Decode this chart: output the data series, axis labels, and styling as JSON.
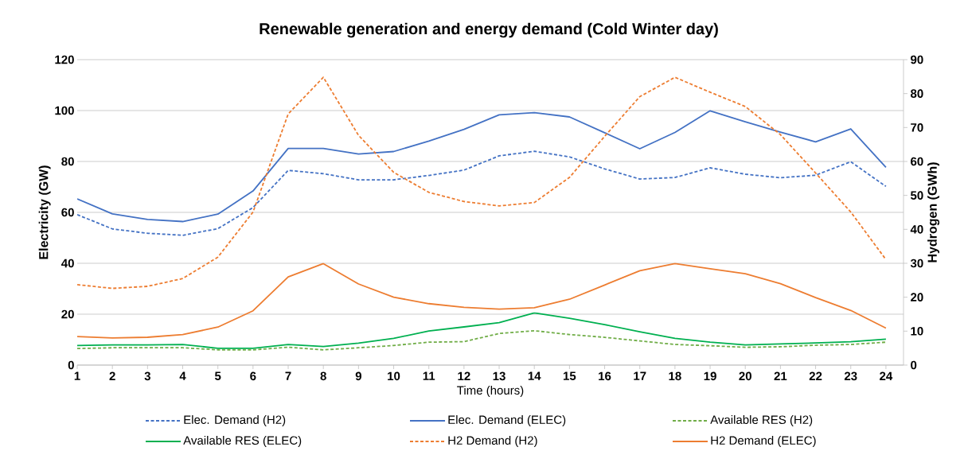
{
  "chart_data": {
    "type": "line",
    "title": "Renewable generation and energy demand (Cold Winter day)",
    "xlabel": "Time (hours)",
    "ylabel": "Electricity (GW)",
    "y2label": "Hydrogen (GWh)",
    "x": [
      1,
      2,
      3,
      4,
      5,
      6,
      7,
      8,
      9,
      10,
      11,
      12,
      13,
      14,
      15,
      16,
      17,
      18,
      19,
      20,
      21,
      22,
      23,
      24
    ],
    "xlim": [
      1,
      24.5
    ],
    "xticks": [
      1,
      2,
      3,
      4,
      5,
      6,
      7,
      8,
      9,
      10,
      11,
      12,
      13,
      14,
      15,
      16,
      17,
      18,
      19,
      20,
      21,
      22,
      23,
      24
    ],
    "ylim": [
      0,
      120
    ],
    "yticks": [
      0,
      20,
      40,
      60,
      80,
      100,
      120
    ],
    "y2lim": [
      0,
      90
    ],
    "y2ticks": [
      0,
      10,
      20,
      30,
      40,
      50,
      60,
      70,
      80,
      90
    ],
    "grid": "y",
    "legend": "bottom",
    "marker": "none",
    "series": [
      {
        "name": "Elec. Demand (H2)",
        "color": "#4472c4",
        "line_style": "dashed",
        "values": [
          59.1,
          53.5,
          51.8,
          51.0,
          53.6,
          61.9,
          76.5,
          75.2,
          72.8,
          72.8,
          74.5,
          76.6,
          82.2,
          84.0,
          81.8,
          77.1,
          73.1,
          73.7,
          77.5,
          75.0,
          73.6,
          74.6,
          79.9,
          70.2
        ]
      },
      {
        "name": "Elec. Demand (ELEC)",
        "color": "#4472c4",
        "line_style": "solid",
        "values": [
          65.3,
          59.4,
          57.2,
          56.4,
          59.3,
          68.4,
          85.1,
          85.1,
          82.9,
          83.9,
          88.0,
          92.6,
          98.3,
          99.2,
          97.5,
          91.3,
          85.0,
          91.4,
          99.9,
          95.6,
          91.5,
          87.7,
          92.8,
          77.7
        ]
      },
      {
        "name": "Available RES (H2)",
        "color": "#70ad47",
        "line_style": "dashed",
        "values": [
          6.5,
          6.8,
          6.8,
          6.8,
          6.0,
          6.0,
          7.0,
          6.0,
          6.8,
          7.7,
          9.0,
          9.2,
          12.4,
          13.5,
          12.0,
          10.9,
          9.5,
          8.1,
          7.6,
          7.0,
          7.2,
          7.8,
          8.1,
          9.0
        ]
      },
      {
        "name": "Available RES (ELEC)",
        "color": "#00b050",
        "line_style": "solid",
        "values": [
          7.7,
          7.9,
          7.9,
          8.1,
          6.6,
          6.6,
          8.1,
          7.3,
          8.6,
          10.5,
          13.4,
          15.0,
          16.7,
          20.5,
          18.4,
          15.9,
          13.1,
          10.5,
          9.0,
          7.9,
          8.3,
          8.7,
          9.2,
          10.2
        ]
      },
      {
        "name": "H2 Demand (H2)",
        "color": "#ed7d31",
        "line_style": "dashed",
        "axis": "y2",
        "values": [
          23.7,
          22.6,
          23.2,
          25.5,
          31.8,
          45.1,
          74.0,
          84.8,
          67.7,
          56.8,
          50.9,
          48.2,
          46.9,
          47.9,
          55.3,
          67.4,
          79.1,
          84.8,
          80.4,
          76.2,
          67.9,
          56.6,
          45.1,
          31.1
        ]
      },
      {
        "name": "H2 Demand (ELEC)",
        "color": "#ed7d31",
        "line_style": "solid",
        "axis": "y2",
        "values": [
          8.4,
          8.0,
          8.2,
          9.0,
          11.2,
          16.0,
          26.0,
          29.9,
          23.9,
          20.0,
          18.1,
          17.0,
          16.5,
          16.9,
          19.4,
          23.6,
          27.8,
          29.9,
          28.4,
          26.9,
          24.0,
          19.9,
          16.1,
          10.9
        ]
      }
    ]
  }
}
